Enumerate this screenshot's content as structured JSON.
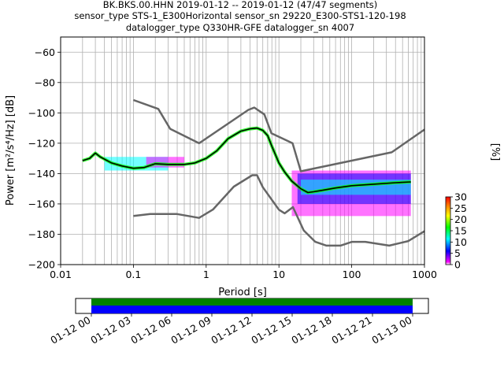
{
  "title": {
    "line1": "BK.BKS.00.HHN   2019-01-12 -- 2019-01-12  (47/47 segments)",
    "line2": "sensor_type STS-1_E300Horizontal sensor_sn 29220_E300-STS1-120-198",
    "line3": "datalogger_type Q330HR-GFE datalogger_sn 4007"
  },
  "colorbar": {
    "label": "[%]",
    "ticks": [
      "0",
      "5",
      "10",
      "15",
      "20",
      "25",
      "30"
    ],
    "colors": [
      "#ffffff",
      "#ff00ff",
      "#0000ff",
      "#00ffff",
      "#00ff00",
      "#ffff00",
      "#ff7f00",
      "#ff0000"
    ]
  },
  "timeline": {
    "ticks": [
      "01-12 00",
      "01-12 03",
      "01-12 06",
      "01-12 09",
      "01-12 12",
      "01-12 15",
      "01-12 18",
      "01-12 21",
      "01-13 00"
    ]
  },
  "chart_data": {
    "type": "line",
    "xlabel": "Period [s]",
    "ylabel": "Power [m²/s⁴/Hz] [dB]",
    "xscale": "log",
    "xlim": [
      0.01,
      1000
    ],
    "ylim": [
      -200,
      -50
    ],
    "xticks": [
      {
        "v": 0.01,
        "label": "0.01"
      },
      {
        "v": 0.1,
        "label": "0.1"
      },
      {
        "v": 1,
        "label": "1"
      },
      {
        "v": 10,
        "label": "10"
      },
      {
        "v": 100,
        "label": "100"
      },
      {
        "v": 1000,
        "label": "1000"
      }
    ],
    "yticks": [
      {
        "v": -60,
        "label": "−60"
      },
      {
        "v": -80,
        "label": "−80"
      },
      {
        "v": -100,
        "label": "−100"
      },
      {
        "v": -120,
        "label": "−120"
      },
      {
        "v": -140,
        "label": "−140"
      },
      {
        "v": -160,
        "label": "−160"
      },
      {
        "v": -180,
        "label": "−180"
      },
      {
        "v": -200,
        "label": "−200"
      }
    ],
    "grid": true,
    "series": [
      {
        "role": "nhnm",
        "color": "#666666",
        "x": [
          0.1,
          0.22,
          0.32,
          0.8,
          3.8,
          4.6,
          6.3,
          7.9,
          15.4,
          20,
          354.8,
          1000
        ],
        "y": [
          -91.5,
          -97.4,
          -110.5,
          -120,
          -98,
          -96.5,
          -101,
          -113.5,
          -120,
          -138.5,
          -126,
          -111
        ]
      },
      {
        "role": "nlnm",
        "color": "#666666",
        "x": [
          0.1,
          0.17,
          0.4,
          0.8,
          1.24,
          2.4,
          4.3,
          5,
          6,
          10,
          12,
          15.6,
          21.9,
          31.6,
          45,
          70,
          101,
          154,
          328,
          600,
          1000
        ],
        "y": [
          -168,
          -166.7,
          -166.7,
          -169.2,
          -163.7,
          -148.6,
          -141.1,
          -141.1,
          -149,
          -163.8,
          -166.2,
          -162.1,
          -177.5,
          -185,
          -187.5,
          -187.5,
          -185,
          -185,
          -187.5,
          -184.5,
          -178
        ]
      },
      {
        "role": "mean",
        "color": "#000000",
        "x": [
          0.02,
          0.025,
          0.03,
          0.035,
          0.05,
          0.07,
          0.1,
          0.14,
          0.2,
          0.3,
          0.5,
          0.7,
          1,
          1.4,
          2,
          3,
          4,
          5,
          6,
          7,
          8,
          10,
          12,
          15,
          20,
          25,
          30,
          40,
          60,
          100,
          200,
          400,
          650
        ],
        "y": [
          -131.5,
          -130,
          -126.5,
          -129,
          -133,
          -135,
          -136.5,
          -136,
          -133.5,
          -134,
          -134,
          -133,
          -130,
          -125,
          -117,
          -112,
          -110.5,
          -110,
          -111.5,
          -115,
          -122,
          -133,
          -139,
          -145,
          -150,
          -152.5,
          -152,
          -151,
          -149.5,
          -148,
          -147,
          -146,
          -145.5
        ]
      }
    ],
    "density_bands": [
      {
        "x": [
          0.04,
          0.3
        ],
        "y": [
          -138,
          -129
        ],
        "color": "#00ffff"
      },
      {
        "x": [
          0.15,
          0.5
        ],
        "y": [
          -136,
          -129
        ],
        "color": "#ff00ff"
      },
      {
        "x": [
          15,
          650
        ],
        "y": [
          -168,
          -138
        ],
        "color": "#ff00ff"
      },
      {
        "x": [
          18,
          650
        ],
        "y": [
          -160,
          -140
        ],
        "color": "#0000ff"
      },
      {
        "x": [
          20,
          650
        ],
        "y": [
          -154,
          -144
        ],
        "color": "#00ffff"
      }
    ]
  }
}
